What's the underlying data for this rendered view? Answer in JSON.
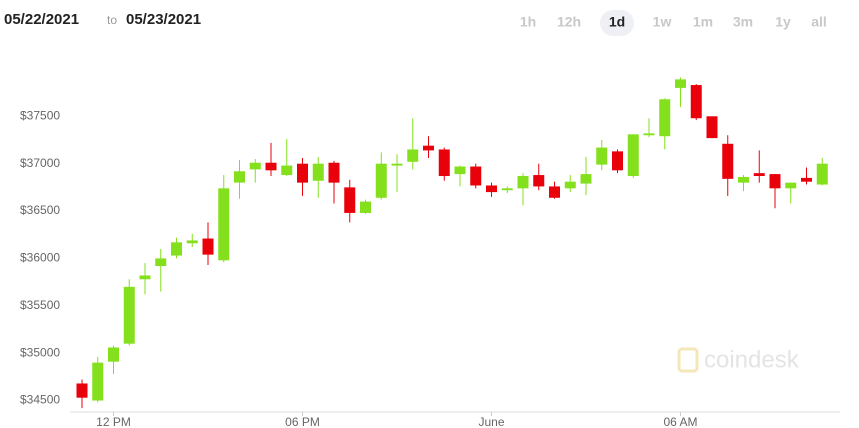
{
  "range_picker": {
    "start": "05/22/2021",
    "separator": "to",
    "end": "05/23/2021",
    "options": [
      "1h",
      "12h",
      "1d",
      "1w",
      "1m",
      "3m",
      "1y",
      "all"
    ],
    "selected": "1d"
  },
  "watermark": "coindesk",
  "chart_data": {
    "type": "candlestick",
    "categories": [
      null,
      null,
      "12 PM",
      null,
      null,
      null,
      null,
      null,
      null,
      null,
      null,
      null,
      null,
      null,
      "06 PM",
      null,
      null,
      null,
      null,
      null,
      null,
      null,
      null,
      null,
      null,
      null,
      "June",
      null,
      null,
      null,
      null,
      null,
      null,
      null,
      null,
      null,
      null,
      null,
      "06 AM",
      null,
      null,
      null,
      null,
      null,
      null,
      null,
      null,
      null
    ],
    "open": [
      34680,
      34500,
      34910,
      35100,
      35780,
      35920,
      36030,
      36160,
      36210,
      35980,
      36800,
      36940,
      37010,
      36880,
      37000,
      36820,
      37010,
      36750,
      36480,
      36640,
      36980,
      37020,
      37190,
      37150,
      36890,
      36970,
      36770,
      36720,
      36740,
      36880,
      36760,
      36740,
      36790,
      36990,
      37130,
      36870,
      37300,
      37290,
      37800,
      37830,
      37500,
      37210,
      36800,
      36900,
      36890,
      36740,
      36850,
      36780
    ],
    "high": [
      34720,
      34960,
      35080,
      35780,
      35950,
      36100,
      36220,
      36260,
      36380,
      36880,
      37040,
      37050,
      37220,
      37260,
      37060,
      37070,
      37030,
      36830,
      36620,
      37120,
      37100,
      37480,
      37290,
      37170,
      36980,
      37000,
      36800,
      36760,
      36900,
      37000,
      36810,
      36880,
      37070,
      37250,
      37150,
      37310,
      37480,
      37690,
      37910,
      37840,
      37500,
      37300,
      36880,
      37140,
      36890,
      36800,
      36960,
      37060
    ],
    "low": [
      34420,
      34480,
      34780,
      35080,
      35620,
      35650,
      36000,
      36120,
      35930,
      35960,
      36630,
      36800,
      36870,
      36870,
      36660,
      36640,
      36580,
      36380,
      36470,
      36620,
      36700,
      36940,
      37060,
      36820,
      36760,
      36740,
      36650,
      36690,
      36560,
      36720,
      36630,
      36700,
      36670,
      36930,
      36900,
      36850,
      37280,
      37150,
      37600,
      37460,
      37270,
      36660,
      36710,
      36800,
      36530,
      36580,
      36780,
      36770
    ],
    "close": [
      34530,
      34900,
      35060,
      35700,
      35820,
      36000,
      36170,
      36190,
      36040,
      36740,
      36920,
      37010,
      36930,
      36980,
      36800,
      37000,
      36800,
      36480,
      36600,
      37000,
      37000,
      37150,
      37140,
      36870,
      36970,
      36770,
      36700,
      36740,
      36870,
      36760,
      36640,
      36810,
      36890,
      37170,
      36930,
      37310,
      37320,
      37680,
      37890,
      37480,
      37270,
      36840,
      36860,
      36870,
      36740,
      36800,
      36810,
      37000
    ],
    "up_color": "#84e01c",
    "down_color": "#e8000b",
    "ylim": [
      34400,
      38200
    ],
    "yticks": [
      {
        "value": 34500,
        "label": "$34500"
      },
      {
        "value": 35000,
        "label": "$35000"
      },
      {
        "value": 35500,
        "label": "$35500"
      },
      {
        "value": 36000,
        "label": "$36000"
      },
      {
        "value": 36500,
        "label": "$36500"
      },
      {
        "value": 37000,
        "label": "$37000"
      },
      {
        "value": 37500,
        "label": "$37500"
      }
    ]
  }
}
